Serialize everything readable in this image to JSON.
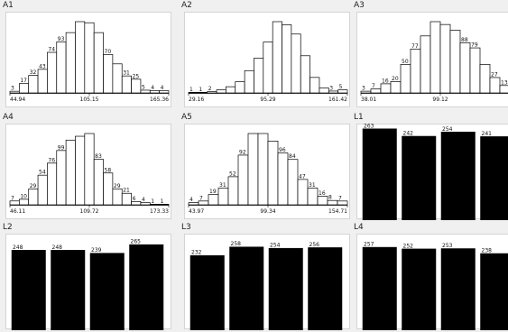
{
  "colors": {
    "bar_outline": "#000000",
    "bar_fill_hist": "#ffffff",
    "bar_fill_col": "#000000",
    "panel_bg": "#f0f0f0",
    "plot_bg": "#ffffff"
  },
  "panels": [
    {
      "id": "A1",
      "title": "A1",
      "kind": "histogram",
      "counts": [
        3,
        17,
        32,
        43,
        74,
        93,
        110,
        130,
        128,
        110,
        70,
        53,
        31,
        25,
        5,
        4,
        4
      ],
      "labels": [
        "3",
        "17",
        "32",
        "43",
        "74",
        "93",
        "",
        "",
        "",
        "",
        "70",
        "",
        "31",
        "25",
        "5",
        "4",
        "4"
      ],
      "ticks": [
        "44.94",
        "105.15",
        "165.36"
      ]
    },
    {
      "id": "A2",
      "title": "A2",
      "kind": "histogram",
      "counts": [
        1,
        1,
        2,
        5,
        10,
        18,
        36,
        56,
        82,
        115,
        110,
        95,
        60,
        25,
        8,
        3,
        5
      ],
      "labels": [
        "1",
        "1",
        "2",
        "",
        "",
        "",
        "",
        "",
        "",
        "",
        "",
        "",
        "",
        "",
        "",
        "3",
        "5"
      ],
      "ticks": [
        "29.16",
        "95.29",
        "161.42"
      ]
    },
    {
      "id": "A3",
      "title": "A3",
      "kind": "histogram",
      "counts": [
        3,
        7,
        16,
        20,
        50,
        77,
        100,
        125,
        120,
        110,
        88,
        79,
        50,
        27,
        13,
        7
      ],
      "labels": [
        "3",
        "7",
        "16",
        "20",
        "50",
        "77",
        "",
        "",
        "",
        "",
        "88",
        "79",
        "",
        "27",
        "13",
        "7"
      ],
      "ticks": [
        "38.01",
        "99.12",
        "160"
      ]
    },
    {
      "id": "A4",
      "title": "A4",
      "kind": "histogram",
      "counts": [
        7,
        10,
        29,
        54,
        76,
        99,
        118,
        125,
        130,
        83,
        58,
        29,
        21,
        6,
        4,
        1,
        1
      ],
      "labels": [
        "7",
        "10",
        "29",
        "54",
        "76",
        "99",
        "",
        "",
        "",
        "83",
        "58",
        "29",
        "21",
        "6",
        "4",
        "1",
        "1"
      ],
      "ticks": [
        "46.11",
        "109.72",
        "173.33"
      ]
    },
    {
      "id": "A5",
      "title": "A5",
      "kind": "histogram",
      "counts": [
        4,
        7,
        19,
        31,
        52,
        92,
        132,
        132,
        118,
        96,
        84,
        47,
        31,
        16,
        8,
        7
      ],
      "labels": [
        "4",
        "7",
        "19",
        "31",
        "52",
        "92",
        "",
        "",
        "",
        "96",
        "84",
        "47",
        "31",
        "16",
        "8",
        "7"
      ],
      "ticks": [
        "43.97",
        "99.34",
        "154.71"
      ]
    },
    {
      "id": "L1",
      "title": "L1",
      "kind": "columns",
      "values": [
        263,
        242,
        254,
        241
      ],
      "labels": [
        "263",
        "242",
        "254",
        "241"
      ],
      "max": 270
    },
    {
      "id": "L2",
      "title": "L2",
      "kind": "columns",
      "values": [
        248,
        248,
        239,
        265
      ],
      "labels": [
        "248",
        "248",
        "239",
        "265"
      ],
      "max": 290
    },
    {
      "id": "L3",
      "title": "L3",
      "kind": "columns",
      "values": [
        232,
        258,
        254,
        256
      ],
      "labels": [
        "232",
        "258",
        "254",
        "256"
      ],
      "max": 290
    },
    {
      "id": "L4",
      "title": "L4",
      "kind": "columns",
      "values": [
        257,
        252,
        253,
        238
      ],
      "labels": [
        "257",
        "252",
        "253",
        "238"
      ],
      "max": 290
    }
  ],
  "chart_data": [
    {
      "type": "bar",
      "title": "A1",
      "values": [
        3,
        17,
        32,
        43,
        74,
        93,
        110,
        130,
        128,
        110,
        70,
        53,
        31,
        25,
        5,
        4,
        4
      ],
      "x_ticks": [
        "44.94",
        "105.15",
        "165.36"
      ]
    },
    {
      "type": "bar",
      "title": "A2",
      "values": [
        1,
        1,
        2,
        5,
        10,
        18,
        36,
        56,
        82,
        115,
        110,
        95,
        60,
        25,
        8,
        3,
        5
      ],
      "x_ticks": [
        "29.16",
        "95.29",
        "161.42"
      ]
    },
    {
      "type": "bar",
      "title": "A3",
      "values": [
        3,
        7,
        16,
        20,
        50,
        77,
        100,
        125,
        120,
        110,
        88,
        79,
        50,
        27,
        13,
        7
      ],
      "x_ticks": [
        "38.01",
        "99.12",
        "160"
      ]
    },
    {
      "type": "bar",
      "title": "A4",
      "values": [
        7,
        10,
        29,
        54,
        76,
        99,
        118,
        125,
        130,
        83,
        58,
        29,
        21,
        6,
        4,
        1,
        1
      ],
      "x_ticks": [
        "46.11",
        "109.72",
        "173.33"
      ]
    },
    {
      "type": "bar",
      "title": "A5",
      "values": [
        4,
        7,
        19,
        31,
        52,
        92,
        132,
        132,
        118,
        96,
        84,
        47,
        31,
        16,
        8,
        7
      ],
      "x_ticks": [
        "43.97",
        "99.34",
        "154.71"
      ]
    },
    {
      "type": "bar",
      "title": "L1",
      "values": [
        263,
        242,
        254,
        241
      ]
    },
    {
      "type": "bar",
      "title": "L2",
      "values": [
        248,
        248,
        239,
        265
      ]
    },
    {
      "type": "bar",
      "title": "L3",
      "values": [
        232,
        258,
        254,
        256
      ]
    },
    {
      "type": "bar",
      "title": "L4",
      "values": [
        257,
        252,
        253,
        238
      ]
    }
  ]
}
